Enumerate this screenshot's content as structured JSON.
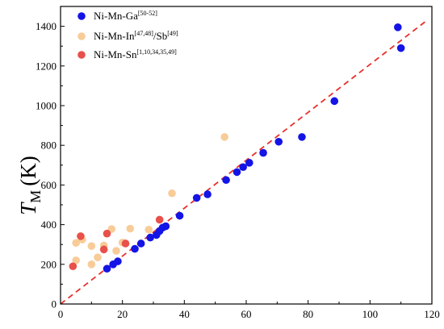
{
  "chart_data": {
    "type": "scatter",
    "title": "",
    "xlabel": "",
    "ylabel": {
      "main": "T",
      "sub": "M",
      "unit": "(K)"
    },
    "xlim": [
      0,
      120
    ],
    "ylim": [
      0,
      1500
    ],
    "x_ticks": [
      0,
      20,
      40,
      60,
      80,
      100,
      120
    ],
    "y_ticks": [
      0,
      200,
      400,
      600,
      800,
      1000,
      1200,
      1400
    ],
    "grid": false,
    "legend_position": "top-left",
    "fit_line": {
      "style": "dashed",
      "color": "#e8302e",
      "from": [
        0,
        0
      ],
      "to": [
        118,
        1425
      ]
    },
    "series": [
      {
        "name": "Ni-Mn-Ga",
        "name_sup": "[50-52]",
        "color": "#1414e6",
        "points": [
          [
            15,
            178
          ],
          [
            17,
            200
          ],
          [
            18.5,
            215
          ],
          [
            24,
            278
          ],
          [
            26,
            305
          ],
          [
            29,
            335
          ],
          [
            31,
            348
          ],
          [
            32,
            368
          ],
          [
            33,
            385
          ],
          [
            34,
            392
          ],
          [
            38.5,
            445
          ],
          [
            44,
            535
          ],
          [
            47.5,
            553
          ],
          [
            53.5,
            625
          ],
          [
            57,
            665
          ],
          [
            59,
            690
          ],
          [
            61,
            712
          ],
          [
            65.5,
            762
          ],
          [
            70.5,
            818
          ],
          [
            78,
            842
          ],
          [
            88.5,
            1023
          ],
          [
            109,
            1395
          ],
          [
            110,
            1290
          ]
        ]
      },
      {
        "name": "Ni-Mn-In",
        "name_sup": "[47,48]",
        "name_suffix": "/Sb",
        "name_suffix_sup": "[49]",
        "color": "#f8cc98",
        "points": [
          [
            5,
            220
          ],
          [
            5,
            308
          ],
          [
            7,
            325
          ],
          [
            10,
            200
          ],
          [
            10,
            292
          ],
          [
            12,
            235
          ],
          [
            14,
            295
          ],
          [
            16.5,
            378
          ],
          [
            18,
            268
          ],
          [
            20,
            310
          ],
          [
            22.5,
            380
          ],
          [
            28.5,
            375
          ],
          [
            36,
            558
          ],
          [
            53,
            842
          ]
        ]
      },
      {
        "name": "Ni-Mn-Sn",
        "name_sup": "[1,10,34,35,49]",
        "color": "#e8504a",
        "points": [
          [
            4,
            190
          ],
          [
            6.5,
            342
          ],
          [
            14,
            275
          ],
          [
            15,
            355
          ],
          [
            21,
            305
          ],
          [
            32,
            425
          ]
        ]
      }
    ]
  }
}
